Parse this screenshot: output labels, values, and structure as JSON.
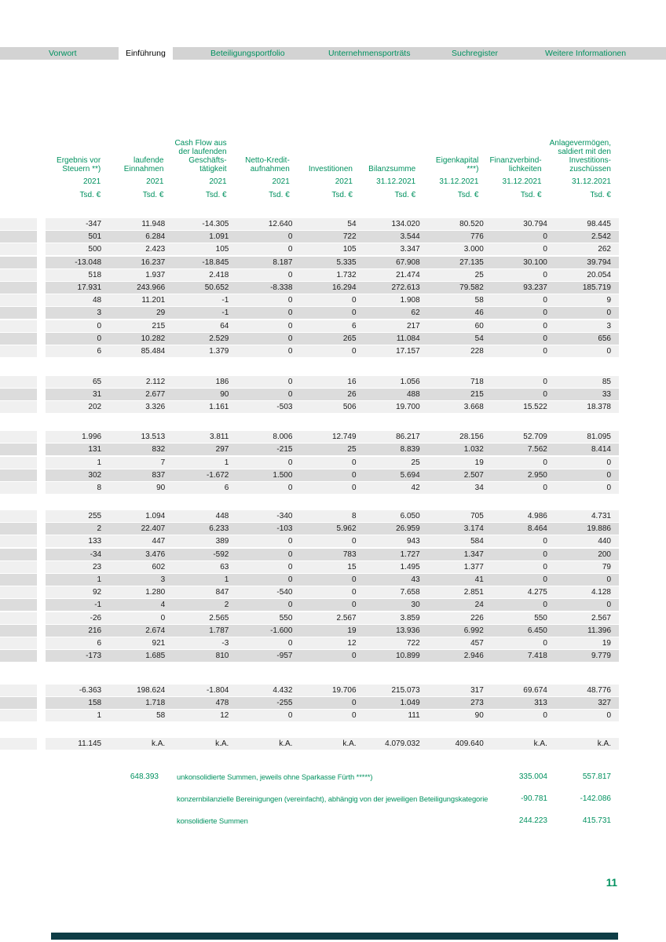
{
  "colors": {
    "accent_teal": "#00915f",
    "navbar_gray": "#d3d3d3",
    "row_light": "#f0f0f0",
    "row_dark": "#dcdcdc",
    "bottom_bar": "#0e3d46"
  },
  "nav": {
    "items": [
      {
        "label": "Vorwort",
        "active": false
      },
      {
        "label": "Einführung",
        "active": true
      },
      {
        "label": "Beteiligungsportfolio",
        "active": false
      },
      {
        "label": "Unternehmensporträts",
        "active": false
      },
      {
        "label": "Suchregister",
        "active": false
      },
      {
        "label": "Weitere Informationen",
        "active": false
      }
    ]
  },
  "table": {
    "columns": [
      {
        "label_lines": [
          "Ergebnis vor",
          "Steuern **)"
        ],
        "period": "2021",
        "unit": "Tsd. €"
      },
      {
        "label_lines": [
          "laufende",
          "Einnahmen"
        ],
        "period": "2021",
        "unit": "Tsd. €"
      },
      {
        "label_lines": [
          "Cash Flow aus",
          "der laufenden",
          "Geschäfts-",
          "tätigkeit"
        ],
        "period": "2021",
        "unit": "Tsd. €"
      },
      {
        "label_lines": [
          "Netto-Kredit-",
          "aufnahmen"
        ],
        "period": "2021",
        "unit": "Tsd. €"
      },
      {
        "label_lines": [
          "Investitionen"
        ],
        "period": "2021",
        "unit": "Tsd. €"
      },
      {
        "label_lines": [
          "Bilanzsumme"
        ],
        "period": "31.12.2021",
        "unit": "Tsd. €"
      },
      {
        "label_lines": [
          "Eigenkapital ***)"
        ],
        "period": "31.12.2021",
        "unit": "Tsd. €"
      },
      {
        "label_lines": [
          "Finanzverbind-",
          "lichkeiten"
        ],
        "period": "31.12.2021",
        "unit": "Tsd. €"
      },
      {
        "label_lines": [
          "Anlagevermögen,",
          "saldiert mit den",
          "Investitions-",
          "zuschüssen"
        ],
        "period": "31.12.2021",
        "unit": "Tsd. €"
      }
    ],
    "groups": [
      {
        "rows": [
          [
            "-347",
            "11.948",
            "-14.305",
            "12.640",
            "54",
            "134.020",
            "80.520",
            "30.794",
            "98.445"
          ],
          [
            "501",
            "6.284",
            "1.091",
            "0",
            "722",
            "3.544",
            "776",
            "0",
            "2.542"
          ],
          [
            "500",
            "2.423",
            "105",
            "0",
            "105",
            "3.347",
            "3.000",
            "0",
            "262"
          ],
          [
            "-13.048",
            "16.237",
            "-18.845",
            "8.187",
            "5.335",
            "67.908",
            "27.135",
            "30.100",
            "39.794"
          ],
          [
            "518",
            "1.937",
            "2.418",
            "0",
            "1.732",
            "21.474",
            "25",
            "0",
            "20.054"
          ],
          [
            "17.931",
            "243.966",
            "50.652",
            "-8.338",
            "16.294",
            "272.613",
            "79.582",
            "93.237",
            "185.719"
          ],
          [
            "48",
            "11.201",
            "-1",
            "0",
            "0",
            "1.908",
            "58",
            "0",
            "9"
          ],
          [
            "3",
            "29",
            "-1",
            "0",
            "0",
            "62",
            "46",
            "0",
            "0"
          ],
          [
            "0",
            "215",
            "64",
            "0",
            "6",
            "217",
            "60",
            "0",
            "3"
          ],
          [
            "0",
            "10.282",
            "2.529",
            "0",
            "265",
            "11.084",
            "54",
            "0",
            "656"
          ],
          [
            "6",
            "85.484",
            "1.379",
            "0",
            "0",
            "17.157",
            "228",
            "0",
            "0"
          ]
        ]
      },
      {
        "rows": [
          [
            "65",
            "2.112",
            "186",
            "0",
            "16",
            "1.056",
            "718",
            "0",
            "85"
          ],
          [
            "31",
            "2.677",
            "90",
            "0",
            "26",
            "488",
            "215",
            "0",
            "33"
          ],
          [
            "202",
            "3.326",
            "1.161",
            "-503",
            "506",
            "19.700",
            "3.668",
            "15.522",
            "18.378"
          ]
        ]
      },
      {
        "rows": [
          [
            "1.996",
            "13.513",
            "3.811",
            "8.006",
            "12.749",
            "86.217",
            "28.156",
            "52.709",
            "81.095"
          ],
          [
            "131",
            "832",
            "297",
            "-215",
            "25",
            "8.839",
            "1.032",
            "7.562",
            "8.414"
          ],
          [
            "1",
            "7",
            "1",
            "0",
            "0",
            "25",
            "19",
            "0",
            "0"
          ],
          [
            "302",
            "837",
            "-1.672",
            "1.500",
            "0",
            "5.694",
            "2.507",
            "2.950",
            "0"
          ],
          [
            "8",
            "90",
            "6",
            "0",
            "0",
            "42",
            "34",
            "0",
            "0"
          ]
        ]
      },
      {
        "rows": [
          [
            "255",
            "1.094",
            "448",
            "-340",
            "8",
            "6.050",
            "705",
            "4.986",
            "4.731"
          ],
          [
            "2",
            "22.407",
            "6.233",
            "-103",
            "5.962",
            "26.959",
            "3.174",
            "8.464",
            "19.886"
          ],
          [
            "133",
            "447",
            "389",
            "0",
            "0",
            "943",
            "584",
            "0",
            "440"
          ],
          [
            "-34",
            "3.476",
            "-592",
            "0",
            "783",
            "1.727",
            "1.347",
            "0",
            "200"
          ],
          [
            "23",
            "602",
            "63",
            "0",
            "15",
            "1.495",
            "1.377",
            "0",
            "79"
          ],
          [
            "1",
            "3",
            "1",
            "0",
            "0",
            "43",
            "41",
            "0",
            "0"
          ],
          [
            "92",
            "1.280",
            "847",
            "-540",
            "0",
            "7.658",
            "2.851",
            "4.275",
            "4.128"
          ],
          [
            "-1",
            "4",
            "2",
            "0",
            "0",
            "30",
            "24",
            "0",
            "0"
          ],
          [
            "-26",
            "0",
            "2.565",
            "550",
            "2.567",
            "3.859",
            "226",
            "550",
            "2.567"
          ],
          [
            "216",
            "2.674",
            "1.787",
            "-1.600",
            "19",
            "13.936",
            "6.992",
            "6.450",
            "11.396"
          ],
          [
            "6",
            "921",
            "-3",
            "0",
            "12",
            "722",
            "457",
            "0",
            "19"
          ],
          [
            "-173",
            "1.685",
            "810",
            "-957",
            "0",
            "10.899",
            "2.946",
            "7.418",
            "9.779"
          ]
        ]
      },
      {
        "rows": [
          [
            "-6.363",
            "198.624",
            "-1.804",
            "4.432",
            "19.706",
            "215.073",
            "317",
            "69.674",
            "48.776"
          ],
          [
            "158",
            "1.718",
            "478",
            "-255",
            "0",
            "1.049",
            "273",
            "313",
            "327"
          ],
          [
            "1",
            "58",
            "12",
            "0",
            "0",
            "111",
            "90",
            "0",
            "0"
          ]
        ]
      },
      {
        "rows": [
          [
            "11.145",
            "k.A.",
            "k.A.",
            "k.A.",
            "k.A.",
            "4.079.032",
            "409.640",
            "k.A.",
            "k.A."
          ]
        ]
      }
    ]
  },
  "footer": {
    "rows": [
      {
        "value_col2": "648.393",
        "label": "unkonsolidierte Summen, jeweils ohne Sparkasse Fürth *****)",
        "value_col8": "335.004",
        "value_col9": "557.817"
      },
      {
        "value_col2": "",
        "label": "konzernbilanzielle Bereinigungen (vereinfacht), abhängig von der jeweiligen Beteiligungskategorie",
        "value_col8": "-90.781",
        "value_col9": "-142.086"
      },
      {
        "value_col2": "",
        "label": "konsolidierte Summen",
        "value_col8": "244.223",
        "value_col9": "415.731"
      }
    ]
  },
  "page_number": "11"
}
